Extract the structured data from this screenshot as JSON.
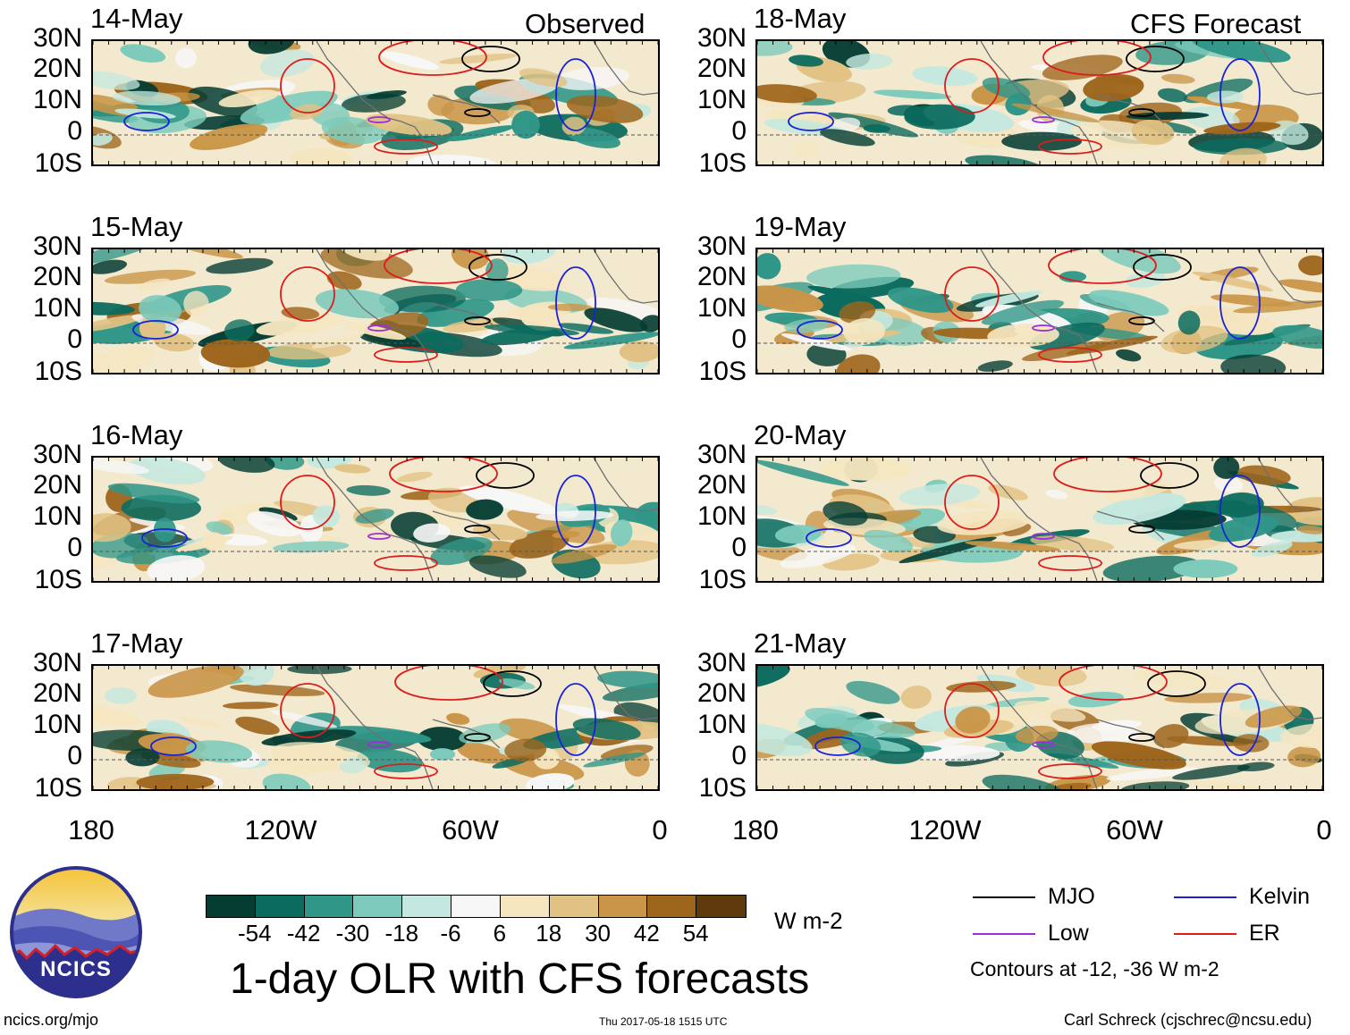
{
  "observed_label": "Observed",
  "forecast_label": "CFS Forecast",
  "colors": {
    "mjo": "#000000",
    "kelvin": "#1a22d9",
    "low": "#9b30d9",
    "er": "#dd1c1c",
    "coast": "#6f6f6f"
  },
  "panels": [
    {
      "date": "14-May",
      "column": "observed"
    },
    {
      "date": "15-May",
      "column": "observed"
    },
    {
      "date": "16-May",
      "column": "observed"
    },
    {
      "date": "17-May",
      "column": "observed"
    },
    {
      "date": "18-May",
      "column": "forecast"
    },
    {
      "date": "19-May",
      "column": "forecast"
    },
    {
      "date": "20-May",
      "column": "forecast"
    },
    {
      "date": "21-May",
      "column": "forecast"
    }
  ],
  "lat_labels": [
    "30N",
    "20N",
    "10N",
    "0",
    "10S"
  ],
  "lon_labels": [
    "180",
    "120W",
    "60W",
    "0"
  ],
  "colorbar": {
    "colors": [
      "#053d33",
      "#0b6b5e",
      "#2f9688",
      "#7ccabb",
      "#c4e8df",
      "#f7f7f7",
      "#f5e6c0",
      "#e2c284",
      "#c99547",
      "#9e651c",
      "#5e3a0c"
    ],
    "labels": [
      "-54",
      "-42",
      "-30",
      "-18",
      "-6",
      "6",
      "18",
      "30",
      "42",
      "54"
    ],
    "units": "W m-2"
  },
  "title": "1-day OLR with CFS forecasts",
  "legend": {
    "mjo": "MJO",
    "kelvin": "Kelvin",
    "low": "Low",
    "er": "ER",
    "contours_note": "Contours at -12, -36 W m-2"
  },
  "logo_text": "NCICS",
  "footer": {
    "left": "ncics.org/mjo",
    "center": "Thu 2017-05-18 1515 UTC",
    "right": "Carl Schreck (cjschrec@ncsu.edu)"
  }
}
